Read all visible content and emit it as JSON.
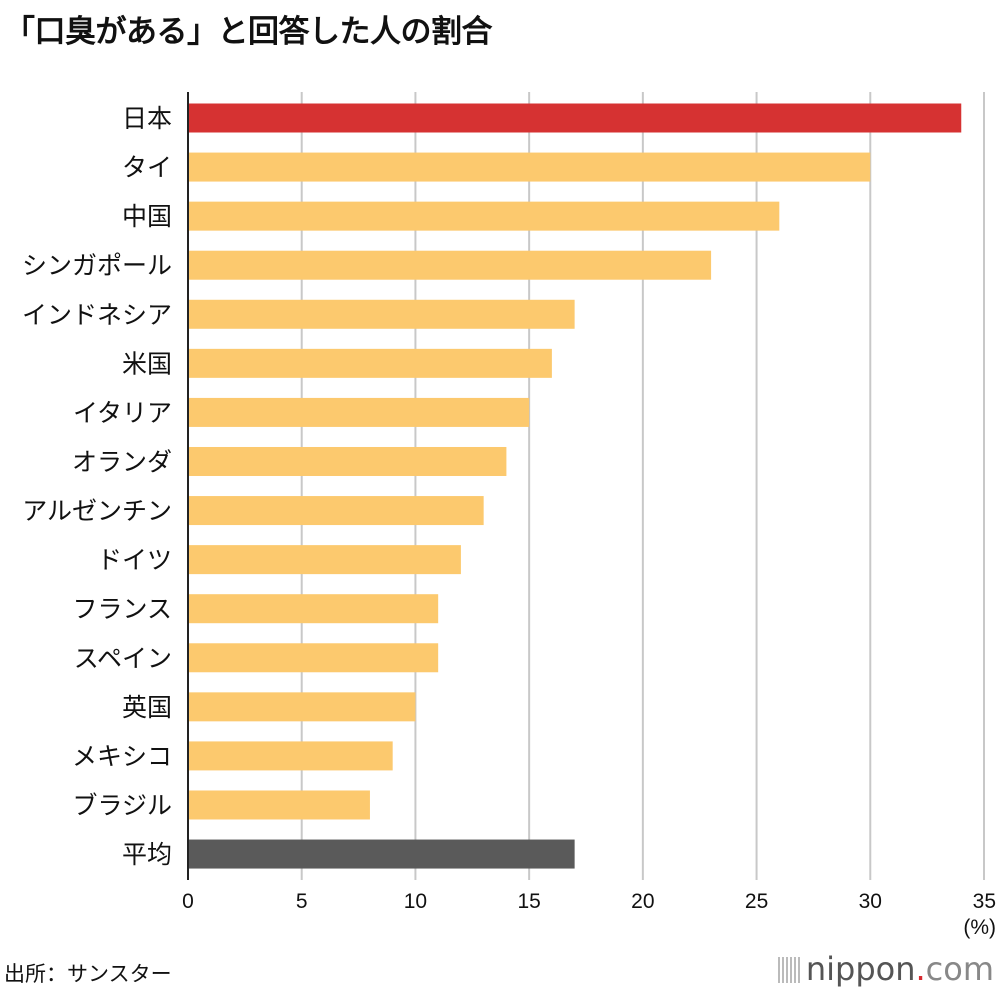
{
  "chart_data": {
    "type": "bar",
    "orientation": "horizontal",
    "title": "「口臭がある」と回答した人の割合",
    "categories": [
      "日本",
      "タイ",
      "中国",
      "シンガポール",
      "インドネシア",
      "米国",
      "イタリア",
      "オランダ",
      "アルゼンチン",
      "ドイツ",
      "フランス",
      "スペイン",
      "英国",
      "メキシコ",
      "ブラジル",
      "平均"
    ],
    "values": [
      34,
      30,
      26,
      23,
      17,
      16,
      15,
      14,
      13,
      12,
      11,
      11,
      10,
      9,
      8,
      17
    ],
    "colors": [
      "#d63232",
      "#fcc96e",
      "#fcc96e",
      "#fcc96e",
      "#fcc96e",
      "#fcc96e",
      "#fcc96e",
      "#fcc96e",
      "#fcc96e",
      "#fcc96e",
      "#fcc96e",
      "#fcc96e",
      "#fcc96e",
      "#fcc96e",
      "#fcc96e",
      "#5a5a5a"
    ],
    "xlim": [
      0,
      35
    ],
    "xticks": [
      "0",
      "5",
      "10",
      "15",
      "20",
      "25",
      "30",
      "35"
    ],
    "xunit": "(%)",
    "grid": true
  },
  "source": "出所：サンスター",
  "logo": {
    "name": "nippon",
    "dot": ".",
    "suffix": "com"
  }
}
